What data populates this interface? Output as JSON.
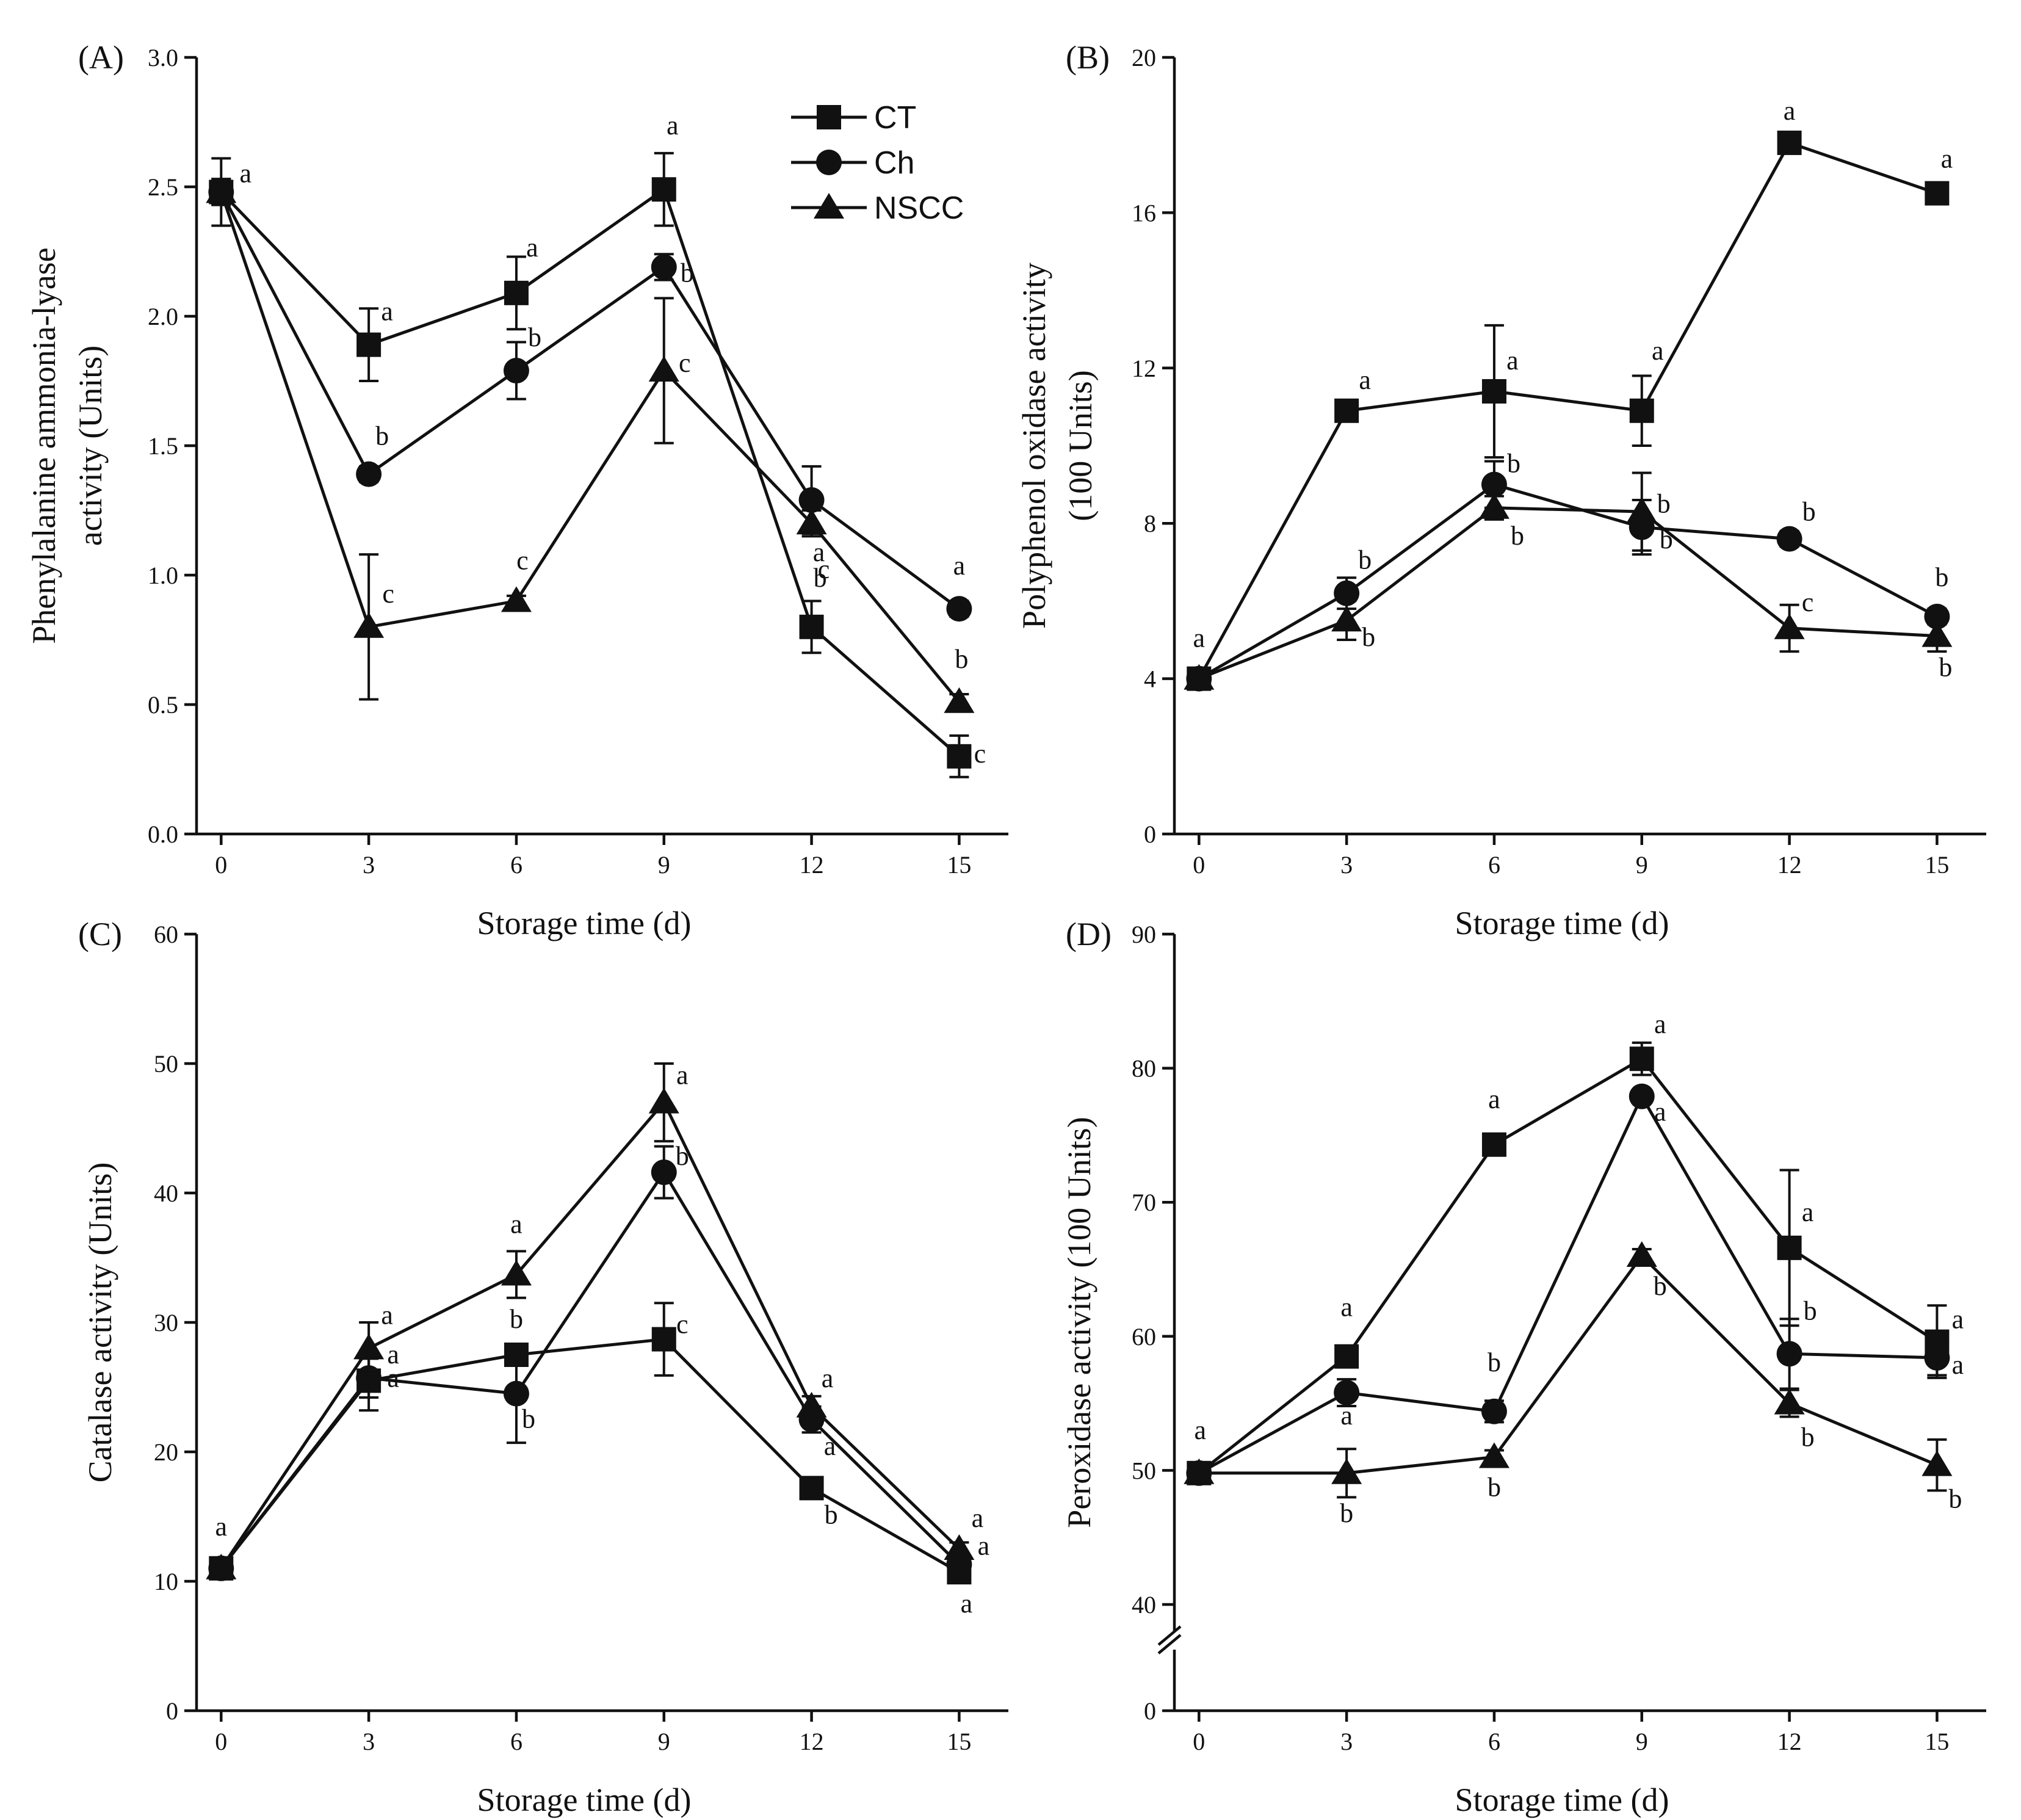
{
  "chart_data": [
    {
      "type": "line",
      "panel_label": "(A)",
      "xlabel": "Storage time (d)",
      "ylabel_lines": [
        "Phenylalanine ammonia-lyase",
        "activity (Units)"
      ],
      "x": [
        0,
        3,
        6,
        9,
        12,
        15
      ],
      "xlim": [
        -0.5,
        16
      ],
      "ylim": [
        0,
        3.0
      ],
      "yticks": [
        0,
        0.5,
        1.0,
        1.5,
        2.0,
        2.5,
        3.0
      ],
      "ytick_labels": [
        "0.0",
        "0.5",
        "1.0",
        "1.5",
        "2.0",
        "2.5",
        "3.0"
      ],
      "legend": {
        "position": "top-right",
        "entries": [
          "CT",
          "Ch",
          "NSCC"
        ]
      },
      "series": [
        {
          "name": "CT",
          "marker": "square",
          "values": [
            2.48,
            1.89,
            2.09,
            2.49,
            0.8,
            0.3
          ],
          "errors": [
            0.13,
            0.14,
            0.14,
            0.14,
            0.1,
            0.08
          ],
          "letters": [
            "a",
            "a",
            "a",
            "a",
            "c",
            "c"
          ]
        },
        {
          "name": "Ch",
          "marker": "circle",
          "values": [
            2.48,
            1.39,
            1.79,
            2.19,
            1.29,
            0.87
          ],
          "errors": [
            0.05,
            0.03,
            0.11,
            0.05,
            0.13,
            0.03
          ],
          "letters": [
            "",
            "b",
            "b",
            "b",
            "a",
            "a"
          ]
        },
        {
          "name": "NSCC",
          "marker": "triangle",
          "values": [
            2.48,
            0.8,
            0.9,
            1.79,
            1.2,
            0.51
          ],
          "errors": [
            0.05,
            0.28,
            0.02,
            0.28,
            0.05,
            0.03
          ],
          "letters": [
            "",
            "c",
            "c",
            "c",
            "b",
            "b"
          ]
        }
      ]
    },
    {
      "type": "line",
      "panel_label": "(B)",
      "xlabel": "Storage time (d)",
      "ylabel_lines": [
        "Polyphenol oxidase activity",
        "(100 Units)"
      ],
      "x": [
        0,
        3,
        6,
        9,
        12,
        15
      ],
      "xlim": [
        -0.5,
        16
      ],
      "ylim": [
        0,
        20
      ],
      "yticks": [
        0,
        4,
        8,
        12,
        16,
        20
      ],
      "ytick_labels": [
        "0",
        "4",
        "8",
        "12",
        "16",
        "20"
      ],
      "series": [
        {
          "name": "CT",
          "marker": "square",
          "values": [
            4.0,
            10.9,
            11.4,
            10.9,
            17.8,
            16.5
          ],
          "errors": [
            0.2,
            0.2,
            1.7,
            0.9,
            0.2,
            0.2
          ],
          "letters": [
            "a",
            "a",
            "a",
            "a",
            "a",
            "a"
          ]
        },
        {
          "name": "Ch",
          "marker": "circle",
          "values": [
            4.0,
            6.2,
            9.0,
            7.9,
            7.6,
            5.6
          ],
          "errors": [
            0.2,
            0.4,
            0.6,
            0.7,
            0.2,
            0.2
          ],
          "letters": [
            "",
            "b",
            "b",
            "b",
            "b",
            "b"
          ]
        },
        {
          "name": "NSCC",
          "marker": "triangle",
          "values": [
            4.0,
            5.5,
            8.4,
            8.3,
            5.3,
            5.1
          ],
          "errors": [
            0.2,
            0.5,
            0.3,
            1.0,
            0.6,
            0.4
          ],
          "letters": [
            "",
            "b",
            "b",
            "b",
            "c",
            "b"
          ]
        }
      ]
    },
    {
      "type": "line",
      "panel_label": "(C)",
      "xlabel": "Storage time (d)",
      "ylabel_lines": [
        "Catalase activity (Units)"
      ],
      "x": [
        0,
        3,
        6,
        9,
        12,
        15
      ],
      "xlim": [
        -0.5,
        16
      ],
      "ylim": [
        0,
        60
      ],
      "yticks": [
        0,
        10,
        20,
        30,
        40,
        50,
        60
      ],
      "ytick_labels": [
        "0",
        "10",
        "20",
        "30",
        "40",
        "50",
        "60"
      ],
      "series": [
        {
          "name": "CT",
          "marker": "square",
          "values": [
            11.0,
            25.5,
            27.5,
            28.7,
            17.2,
            10.7
          ],
          "errors": [
            0.5,
            2.3,
            0.5,
            2.8,
            0.5,
            0.5
          ],
          "letters": [
            "a",
            "a",
            "b",
            "c",
            "b",
            "a"
          ]
        },
        {
          "name": "Ch",
          "marker": "circle",
          "values": [
            11.0,
            25.7,
            24.5,
            41.6,
            22.5,
            11.3
          ],
          "errors": [
            0.5,
            1.5,
            3.8,
            2.0,
            1.0,
            0.5
          ],
          "letters": [
            "",
            "a",
            "b",
            "b",
            "a",
            "a"
          ]
        },
        {
          "name": "NSCC",
          "marker": "triangle",
          "values": [
            11.0,
            28.0,
            33.7,
            47.0,
            23.5,
            12.5
          ],
          "errors": [
            0.5,
            2.0,
            1.8,
            3.0,
            0.8,
            0.5
          ],
          "letters": [
            "",
            "a",
            "a",
            "a",
            "a",
            "a"
          ]
        }
      ]
    },
    {
      "type": "line",
      "panel_label": "(D)",
      "xlabel": "Storage time (d)",
      "ylabel_lines": [
        "Peroxidase activity (100 Units)"
      ],
      "x": [
        0,
        3,
        6,
        9,
        12,
        15
      ],
      "xlim": [
        -0.5,
        16
      ],
      "ylim": [
        0,
        90
      ],
      "axis_break": [
        0,
        40
      ],
      "yticks": [
        0,
        40,
        50,
        60,
        70,
        80,
        90
      ],
      "ytick_labels": [
        "0",
        "40",
        "50",
        "60",
        "70",
        "80",
        "90"
      ],
      "series": [
        {
          "name": "CT",
          "marker": "square",
          "values": [
            49.8,
            58.5,
            74.3,
            80.7,
            66.6,
            59.6
          ],
          "errors": [
            0.5,
            0.8,
            0.5,
            1.2,
            5.8,
            2.7
          ],
          "letters": [
            "a",
            "a",
            "a",
            "a",
            "a",
            "a"
          ]
        },
        {
          "name": "Ch",
          "marker": "circle",
          "values": [
            49.8,
            55.8,
            54.4,
            77.9,
            58.7,
            58.4
          ],
          "errors": [
            0.5,
            1.0,
            0.8,
            0.5,
            2.6,
            1.3
          ],
          "letters": [
            "",
            "a",
            "b",
            "a",
            "b",
            "a"
          ]
        },
        {
          "name": "NSCC",
          "marker": "triangle",
          "values": [
            49.8,
            49.8,
            51.0,
            66.0,
            55.0,
            50.4
          ],
          "errors": [
            0.5,
            1.8,
            0.5,
            0.5,
            1.0,
            1.9
          ],
          "letters": [
            "",
            "b",
            "b",
            "b",
            "b",
            "b"
          ]
        }
      ]
    }
  ]
}
